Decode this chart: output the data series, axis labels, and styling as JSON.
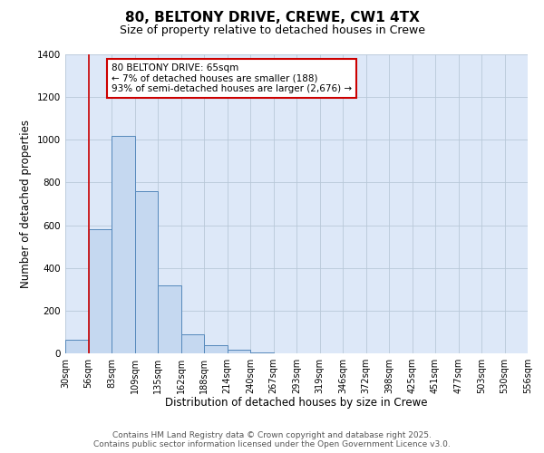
{
  "title": "80, BELTONY DRIVE, CREWE, CW1 4TX",
  "subtitle": "Size of property relative to detached houses in Crewe",
  "xlabel": "Distribution of detached houses by size in Crewe",
  "ylabel": "Number of detached properties",
  "bar_heights": [
    65,
    580,
    1020,
    760,
    320,
    88,
    40,
    18,
    5,
    0,
    0,
    0,
    0,
    0,
    0,
    0,
    0,
    0,
    0,
    0
  ],
  "tick_labels": [
    "30sqm",
    "56sqm",
    "83sqm",
    "109sqm",
    "135sqm",
    "162sqm",
    "188sqm",
    "214sqm",
    "240sqm",
    "267sqm",
    "293sqm",
    "319sqm",
    "346sqm",
    "372sqm",
    "398sqm",
    "425sqm",
    "451sqm",
    "477sqm",
    "503sqm",
    "530sqm",
    "556sqm"
  ],
  "ylim": [
    0,
    1400
  ],
  "yticks": [
    0,
    200,
    400,
    600,
    800,
    1000,
    1200,
    1400
  ],
  "bar_facecolor": "#c5d8f0",
  "bar_edgecolor": "#5588bb",
  "grid_color": "#b8c8d8",
  "bg_color": "#dde8f8",
  "vline_bin": 1,
  "vline_color": "#cc0000",
  "annotation_line1": "80 BELTONY DRIVE: 65sqm",
  "annotation_line2": "← 7% of detached houses are smaller (188)",
  "annotation_line3": "93% of semi-detached houses are larger (2,676) →",
  "footer_line1": "Contains HM Land Registry data © Crown copyright and database right 2025.",
  "footer_line2": "Contains public sector information licensed under the Open Government Licence v3.0.",
  "title_fontsize": 11,
  "subtitle_fontsize": 9,
  "axis_label_fontsize": 8.5,
  "tick_fontsize": 7,
  "annotation_fontsize": 7.5,
  "footer_fontsize": 6.5
}
